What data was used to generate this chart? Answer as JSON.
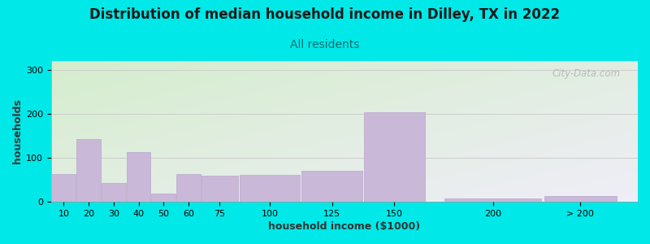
{
  "title": "Distribution of median household income in Dilley, TX in 2022",
  "subtitle": "All residents",
  "xlabel": "household income ($1000)",
  "ylabel": "households",
  "bar_color": "#c9b8d8",
  "bar_edge_color": "#b8a8cc",
  "background_color": "#00e8e8",
  "plot_bg_topleft": "#d4edcc",
  "plot_bg_bottomright": "#f0eef8",
  "categories": [
    "10",
    "20",
    "30",
    "40",
    "50",
    "60",
    "75",
    "100",
    "125",
    "150",
    "200",
    "> 200"
  ],
  "values": [
    63,
    142,
    43,
    113,
    18,
    63,
    60,
    62,
    70,
    204,
    8,
    13
  ],
  "bar_widths": [
    10,
    10,
    10,
    10,
    10,
    10,
    15,
    25,
    25,
    25,
    40,
    30
  ],
  "bar_lefts": [
    5,
    15,
    25,
    35,
    45,
    55,
    65,
    80,
    105,
    130,
    162,
    202
  ],
  "ylim": [
    0,
    320
  ],
  "yticks": [
    0,
    100,
    200,
    300
  ],
  "watermark": "City-Data.com",
  "title_fontsize": 12,
  "subtitle_fontsize": 10,
  "axis_label_fontsize": 9,
  "tick_fontsize": 8
}
